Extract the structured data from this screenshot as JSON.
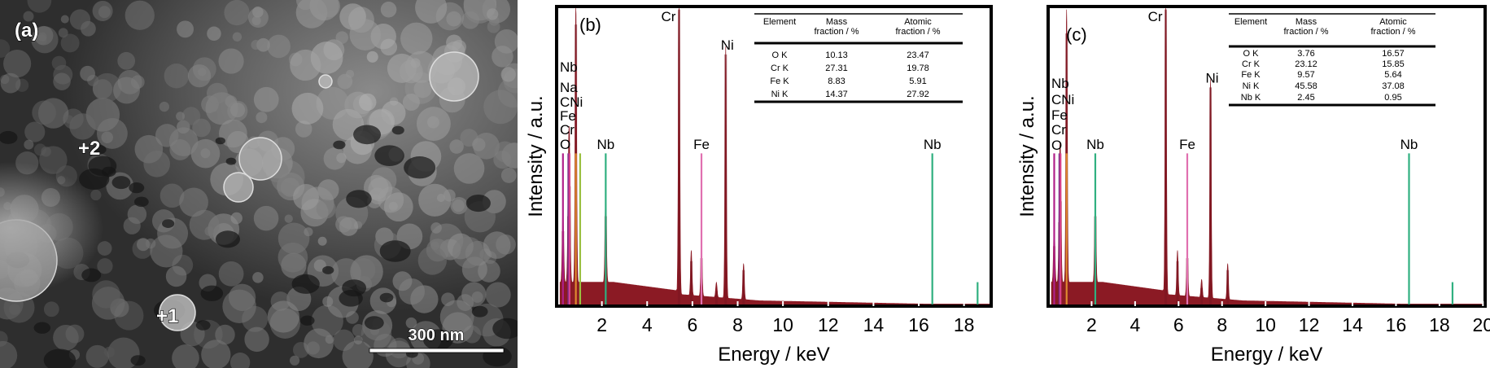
{
  "panel_a": {
    "label": "(a)",
    "points": [
      "+2",
      "+1"
    ],
    "scale_bar": "300 nm"
  },
  "chart_data": [
    {
      "type": "line",
      "panel_label": "(b)",
      "xlabel": "Energy / keV",
      "ylabel": "Intensity / a.u.",
      "xlim": [
        0,
        19.2
      ],
      "ylim": [
        0,
        100
      ],
      "xticks": [
        "2",
        "4",
        "6",
        "8",
        "10",
        "12",
        "14",
        "16",
        "18"
      ],
      "spectrum_color": "#8b1a24",
      "peaks": [
        {
          "energy": 0.28,
          "intensity": 25
        },
        {
          "energy": 0.52,
          "intensity": 30
        },
        {
          "energy": 0.57,
          "intensity": 40
        },
        {
          "energy": 0.85,
          "intensity": 94
        },
        {
          "energy": 2.17,
          "intensity": 30
        },
        {
          "energy": 5.41,
          "intensity": 99
        },
        {
          "energy": 5.95,
          "intensity": 15
        },
        {
          "energy": 6.4,
          "intensity": 16
        },
        {
          "energy": 7.06,
          "intensity": 5
        },
        {
          "energy": 7.47,
          "intensity": 84
        },
        {
          "energy": 8.26,
          "intensity": 12
        }
      ],
      "markers": [
        {
          "energy": 0.28,
          "height": 51,
          "color": "#b0208a"
        },
        {
          "energy": 0.52,
          "height": 51,
          "color": "#7a2a8a"
        },
        {
          "energy": 0.57,
          "height": 51,
          "color": "#d8408a"
        },
        {
          "energy": 0.85,
          "height": 51,
          "color": "#e08a30"
        },
        {
          "energy": 1.04,
          "height": 51,
          "color": "#9ac040"
        },
        {
          "energy": 2.17,
          "height": 51,
          "color": "#30b080"
        },
        {
          "energy": 6.4,
          "height": 51,
          "color": "#e070b0"
        },
        {
          "energy": 16.6,
          "height": 51,
          "color": "#30b080"
        },
        {
          "energy": 18.6,
          "height": 8,
          "color": "#30b080"
        }
      ],
      "peak_labels": [
        {
          "text": "Cr",
          "energy": 5.41,
          "pos": "top"
        },
        {
          "text": "Ni",
          "energy": 7.47,
          "pos": "top"
        },
        {
          "text": "Nb",
          "energy": 2.17,
          "pos": "marker"
        },
        {
          "text": "Fe",
          "energy": 6.4,
          "pos": "marker"
        },
        {
          "text": "Nb",
          "energy": 16.6,
          "pos": "marker"
        }
      ],
      "left_labels": [
        "Nb",
        "Na",
        "CNi",
        "Fe",
        "Cr",
        "O"
      ],
      "table": {
        "headers": [
          [
            "Element",
            ""
          ],
          [
            "Mass",
            "fraction / %"
          ],
          [
            "Atomic",
            "fraction / %"
          ]
        ],
        "rows": [
          [
            "O K",
            "10.13",
            "23.47"
          ],
          [
            "Cr K",
            "27.31",
            "19.78"
          ],
          [
            "Fe K",
            "8.83",
            "5.91"
          ],
          [
            "Ni K",
            "14.37",
            "27.92"
          ]
        ]
      }
    },
    {
      "type": "line",
      "panel_label": "(c)",
      "xlabel": "Energy / keV",
      "ylabel": "Intensity / a.u.",
      "xlim": [
        0,
        20.1
      ],
      "ylim": [
        0,
        100
      ],
      "xticks": [
        "2",
        "4",
        "6",
        "8",
        "10",
        "12",
        "14",
        "16",
        "18",
        "20"
      ],
      "spectrum_color": "#8b1a24",
      "peaks": [
        {
          "energy": 0.28,
          "intensity": 20
        },
        {
          "energy": 0.52,
          "intensity": 28
        },
        {
          "energy": 0.57,
          "intensity": 35
        },
        {
          "energy": 0.85,
          "intensity": 91
        },
        {
          "energy": 2.17,
          "intensity": 30
        },
        {
          "energy": 5.41,
          "intensity": 99
        },
        {
          "energy": 5.95,
          "intensity": 15
        },
        {
          "energy": 6.4,
          "intensity": 16
        },
        {
          "energy": 7.06,
          "intensity": 6
        },
        {
          "energy": 7.47,
          "intensity": 73
        },
        {
          "energy": 8.26,
          "intensity": 12
        }
      ],
      "markers": [
        {
          "energy": 0.28,
          "height": 51,
          "color": "#b0208a"
        },
        {
          "energy": 0.52,
          "height": 51,
          "color": "#7a2a8a"
        },
        {
          "energy": 0.57,
          "height": 51,
          "color": "#d8408a"
        },
        {
          "energy": 0.85,
          "height": 51,
          "color": "#e08a30"
        },
        {
          "energy": 2.17,
          "height": 51,
          "color": "#30b080"
        },
        {
          "energy": 6.4,
          "height": 51,
          "color": "#e070b0"
        },
        {
          "energy": 16.6,
          "height": 51,
          "color": "#30b080"
        },
        {
          "energy": 18.6,
          "height": 8,
          "color": "#30b080"
        }
      ],
      "peak_labels": [
        {
          "text": "Cr",
          "energy": 5.41,
          "pos": "top"
        },
        {
          "text": "Ni",
          "energy": 7.47,
          "pos": "top"
        },
        {
          "text": "Nb",
          "energy": 2.17,
          "pos": "marker"
        },
        {
          "text": "Fe",
          "energy": 6.4,
          "pos": "marker"
        },
        {
          "text": "Nb",
          "energy": 16.6,
          "pos": "marker"
        }
      ],
      "left_labels": [
        "Nb",
        "CNi",
        "Fe",
        "Cr",
        "O"
      ],
      "table": {
        "headers": [
          [
            "Element",
            ""
          ],
          [
            "Mass",
            "fraction / %"
          ],
          [
            "Atomic",
            "fraction / %"
          ]
        ],
        "rows": [
          [
            "O K",
            "3.76",
            "16.57"
          ],
          [
            "Cr K",
            "23.12",
            "15.85"
          ],
          [
            "Fe K",
            "9.57",
            "5.64"
          ],
          [
            "Ni K",
            "45.58",
            "37.08"
          ],
          [
            "Nb K",
            "2.45",
            "0.95"
          ]
        ]
      }
    }
  ]
}
